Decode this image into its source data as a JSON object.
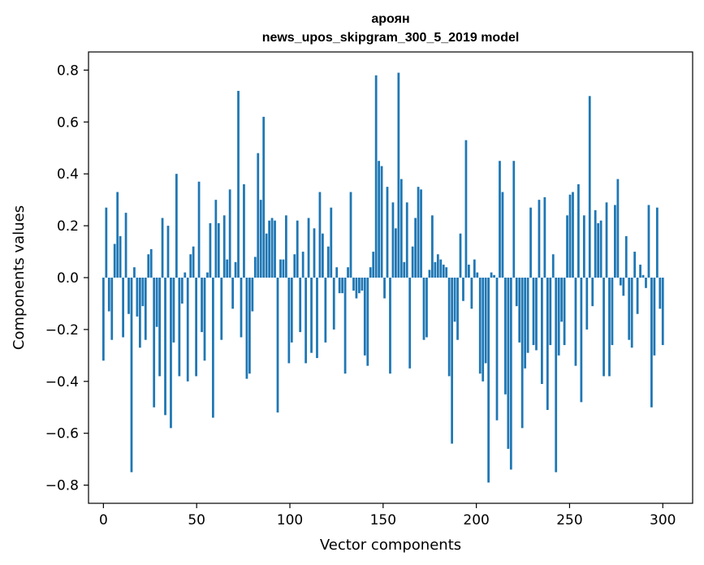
{
  "chart_data": {
    "type": "bar",
    "title": "ароян",
    "subtitle": "news_upos_skipgram_300_5_2019 model",
    "xlabel": "Vector components",
    "ylabel": "Components values",
    "xlim": [
      -8,
      316
    ],
    "ylim": [
      -0.87,
      0.87
    ],
    "xticks": [
      0,
      50,
      100,
      150,
      200,
      250,
      300
    ],
    "yticks": [
      -0.8,
      -0.6,
      -0.4,
      -0.2,
      0.0,
      0.2,
      0.4,
      0.6,
      0.8
    ],
    "ytick_labels": [
      "−0.8",
      "−0.6",
      "−0.4",
      "−0.2",
      "0.0",
      "0.2",
      "0.4",
      "0.6",
      "0.8"
    ],
    "xtick_labels": [
      "0",
      "50",
      "100",
      "150",
      "200",
      "250",
      "300"
    ],
    "bar_color": "#1f77b4",
    "grid": false,
    "values": [
      -0.32,
      0.27,
      -0.13,
      -0.24,
      0.13,
      0.33,
      0.16,
      -0.23,
      0.25,
      -0.14,
      -0.75,
      0.04,
      -0.15,
      -0.27,
      -0.11,
      -0.24,
      0.09,
      0.11,
      -0.5,
      -0.19,
      -0.38,
      0.23,
      -0.53,
      0.2,
      -0.58,
      -0.25,
      0.4,
      -0.38,
      -0.1,
      0.02,
      -0.4,
      0.09,
      0.12,
      -0.38,
      0.37,
      -0.21,
      -0.32,
      0.02,
      0.21,
      -0.54,
      0.3,
      0.21,
      -0.24,
      0.24,
      0.07,
      0.34,
      -0.12,
      0.06,
      0.72,
      -0.23,
      0.36,
      -0.39,
      -0.37,
      -0.13,
      0.08,
      0.48,
      0.3,
      0.62,
      0.17,
      0.22,
      0.23,
      0.22,
      -0.52,
      0.07,
      0.07,
      0.24,
      -0.33,
      -0.25,
      0.09,
      0.22,
      -0.21,
      0.1,
      -0.33,
      0.23,
      -0.29,
      0.19,
      -0.31,
      0.33,
      0.17,
      -0.25,
      0.12,
      0.27,
      -0.2,
      0.04,
      -0.06,
      -0.06,
      -0.37,
      0.04,
      0.33,
      -0.05,
      -0.08,
      -0.06,
      -0.05,
      -0.3,
      -0.34,
      0.04,
      0.1,
      0.78,
      0.45,
      0.43,
      -0.08,
      0.35,
      -0.37,
      0.29,
      0.19,
      0.79,
      0.38,
      0.06,
      0.29,
      -0.35,
      0.12,
      0.23,
      0.35,
      0.34,
      -0.24,
      -0.23,
      0.03,
      0.24,
      0.06,
      0.09,
      0.07,
      0.05,
      0.04,
      -0.38,
      -0.64,
      -0.17,
      -0.24,
      0.17,
      -0.09,
      0.53,
      0.05,
      -0.12,
      0.07,
      0.02,
      -0.37,
      -0.4,
      -0.33,
      -0.79,
      0.02,
      0.01,
      -0.55,
      0.45,
      0.33,
      -0.45,
      -0.66,
      -0.74,
      0.45,
      -0.11,
      -0.25,
      -0.58,
      -0.35,
      -0.29,
      0.27,
      -0.26,
      -0.28,
      0.3,
      -0.41,
      0.31,
      -0.51,
      -0.26,
      0.09,
      -0.75,
      -0.3,
      -0.17,
      -0.26,
      0.24,
      0.32,
      0.33,
      -0.34,
      0.36,
      -0.48,
      0.24,
      -0.2,
      0.7,
      -0.11,
      0.26,
      0.21,
      0.22,
      -0.38,
      0.29,
      -0.38,
      -0.26,
      0.28,
      0.38,
      -0.03,
      -0.07,
      0.16,
      -0.24,
      -0.27,
      0.1,
      -0.14,
      0.05,
      0.01,
      -0.04,
      0.28,
      -0.5,
      -0.3,
      0.27,
      -0.12,
      -0.26
    ]
  }
}
